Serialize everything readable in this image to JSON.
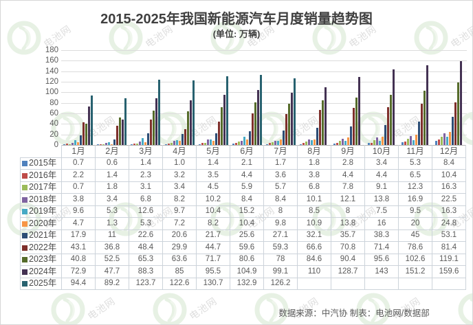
{
  "page": {
    "title": "2015-2025年我国新能源汽车月度销量趋势图",
    "subtitle": "(单位: 万辆)",
    "footer": "数据来源：中汽协  制表：电池网/数据部",
    "watermark_text": "电池网"
  },
  "chart_data": {
    "type": "bar",
    "title": "2015-2025年我国新能源汽车月度销量趋势图",
    "unit_label": "(单位: 万辆)",
    "ylabel": "",
    "ylim": [
      0,
      180
    ],
    "ytick_step": 20,
    "grid": true,
    "legend_position": "data-table-row-labels",
    "categories": [
      "1月",
      "2月",
      "3月",
      "4月",
      "5月",
      "6月",
      "7月",
      "8月",
      "9月",
      "10月",
      "11月",
      "12月"
    ],
    "series": [
      {
        "name": "2015年",
        "color": "#4F81BD",
        "values": [
          "0.7",
          "0.6",
          "1.4",
          "1.0",
          "1.4",
          "2.1",
          "1.7",
          "1.8",
          "2.8",
          "3.4",
          "5.3",
          "8.4"
        ]
      },
      {
        "name": "2016年",
        "color": "#BE4B48",
        "values": [
          "2.2",
          "1.4",
          "2.3",
          "3.2",
          "3.5",
          "4.4",
          "3.6",
          "3.8",
          "4.4",
          "4.4",
          "6.5",
          "10.4"
        ]
      },
      {
        "name": "2017年",
        "color": "#9BBB59",
        "values": [
          "0.7",
          "1.8",
          "3.1",
          "3.4",
          "4.5",
          "5.9",
          "5.7",
          "6.8",
          "7.8",
          "9.1",
          "12.3",
          "16.3"
        ]
      },
      {
        "name": "2018年",
        "color": "#7F63A1",
        "values": [
          "3.8",
          "3.4",
          "6.8",
          "8.2",
          "10.2",
          "8.4",
          "8.4",
          "10.1",
          "12.1",
          "13.8",
          "16.9",
          "22.5"
        ]
      },
      {
        "name": "2019年",
        "color": "#46AAC5",
        "values": [
          "9.6",
          "5.3",
          "12.6",
          "9.7",
          "10.4",
          "15.2",
          "8",
          "8.5",
          "8",
          "7.5",
          "9.5",
          "16.3"
        ]
      },
      {
        "name": "2020年",
        "color": "#F79646",
        "values": [
          "4.7",
          "1.3",
          "5.3",
          "7.2",
          "8.2",
          "10.4",
          "9.8",
          "10.9",
          "13.8",
          "16",
          "20",
          "24.8"
        ]
      },
      {
        "name": "2021年",
        "color": "#2C4D75",
        "values": [
          "17.9",
          "11",
          "22.6",
          "20.6",
          "21.7",
          "25.6",
          "27.1",
          "32.1",
          "35.7",
          "38.3",
          "45",
          "53.1"
        ]
      },
      {
        "name": "2022年",
        "color": "#7E2F2B",
        "values": [
          "43.1",
          "36.8",
          "48.4",
          "29.9",
          "44.7",
          "59.6",
          "59.3",
          "66.6",
          "70.8",
          "71.4",
          "78.6",
          "81.4"
        ]
      },
      {
        "name": "2023年",
        "color": "#556B2A",
        "values": [
          "40.8",
          "52.5",
          "65.3",
          "63.6",
          "71.7",
          "80.6",
          "78",
          "84.6",
          "90.4",
          "95.6",
          "102.6",
          "119.1"
        ]
      },
      {
        "name": "2024年",
        "color": "#433152",
        "values": [
          "72.9",
          "47.7",
          "88.3",
          "85",
          "95.5",
          "104.9",
          "99.1",
          "110",
          "128.7",
          "143",
          "151.2",
          "159.6"
        ]
      },
      {
        "name": "2025年",
        "color": "#27616F",
        "values": [
          "94.4",
          "89.2",
          "123.7",
          "122.6",
          "130.7",
          "132.9",
          "126.2",
          "",
          "",
          "",
          "",
          ""
        ]
      }
    ]
  }
}
